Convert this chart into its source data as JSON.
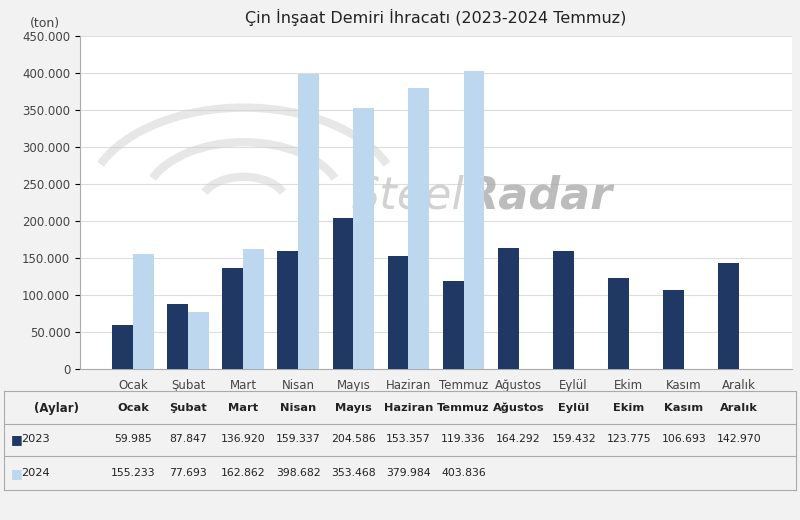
{
  "title": "Çin İnşaat Demiri İhracatı (2023-2024 Temmuz)",
  "ylabel": "(ton)",
  "xlabel_row": "(Aylar)",
  "months": [
    "Ocak",
    "Şubat",
    "Mart",
    "Nisan",
    "Mayıs",
    "Haziran",
    "Temmuz",
    "Ağustos",
    "Eylül",
    "Ekim",
    "Kasım",
    "Aralık"
  ],
  "data_2023": [
    59985,
    87847,
    136920,
    159337,
    204586,
    153357,
    119336,
    164292,
    159432,
    123775,
    106693,
    142970
  ],
  "data_2024": [
    155233,
    77693,
    162862,
    398682,
    353468,
    379984,
    403836,
    null,
    null,
    null,
    null,
    null
  ],
  "color_2023": "#1F3864",
  "color_2024": "#BDD7EE",
  "ylim": [
    0,
    450000
  ],
  "yticks": [
    0,
    50000,
    100000,
    150000,
    200000,
    250000,
    300000,
    350000,
    400000,
    450000
  ],
  "ytick_labels": [
    "0",
    "50.000",
    "100.000",
    "150.000",
    "200.000",
    "250.000",
    "300.000",
    "350.000",
    "400.000",
    "450.000"
  ],
  "legend_2023": "2023",
  "legend_2024": "2024",
  "watermark_left": "Steel",
  "watermark_right": "Radar",
  "background_color": "#F2F2F2",
  "plot_bg_color": "#FFFFFF",
  "grid_color": "#DDDDDD",
  "table_border_color": "#AAAAAA",
  "bar_width": 0.38
}
